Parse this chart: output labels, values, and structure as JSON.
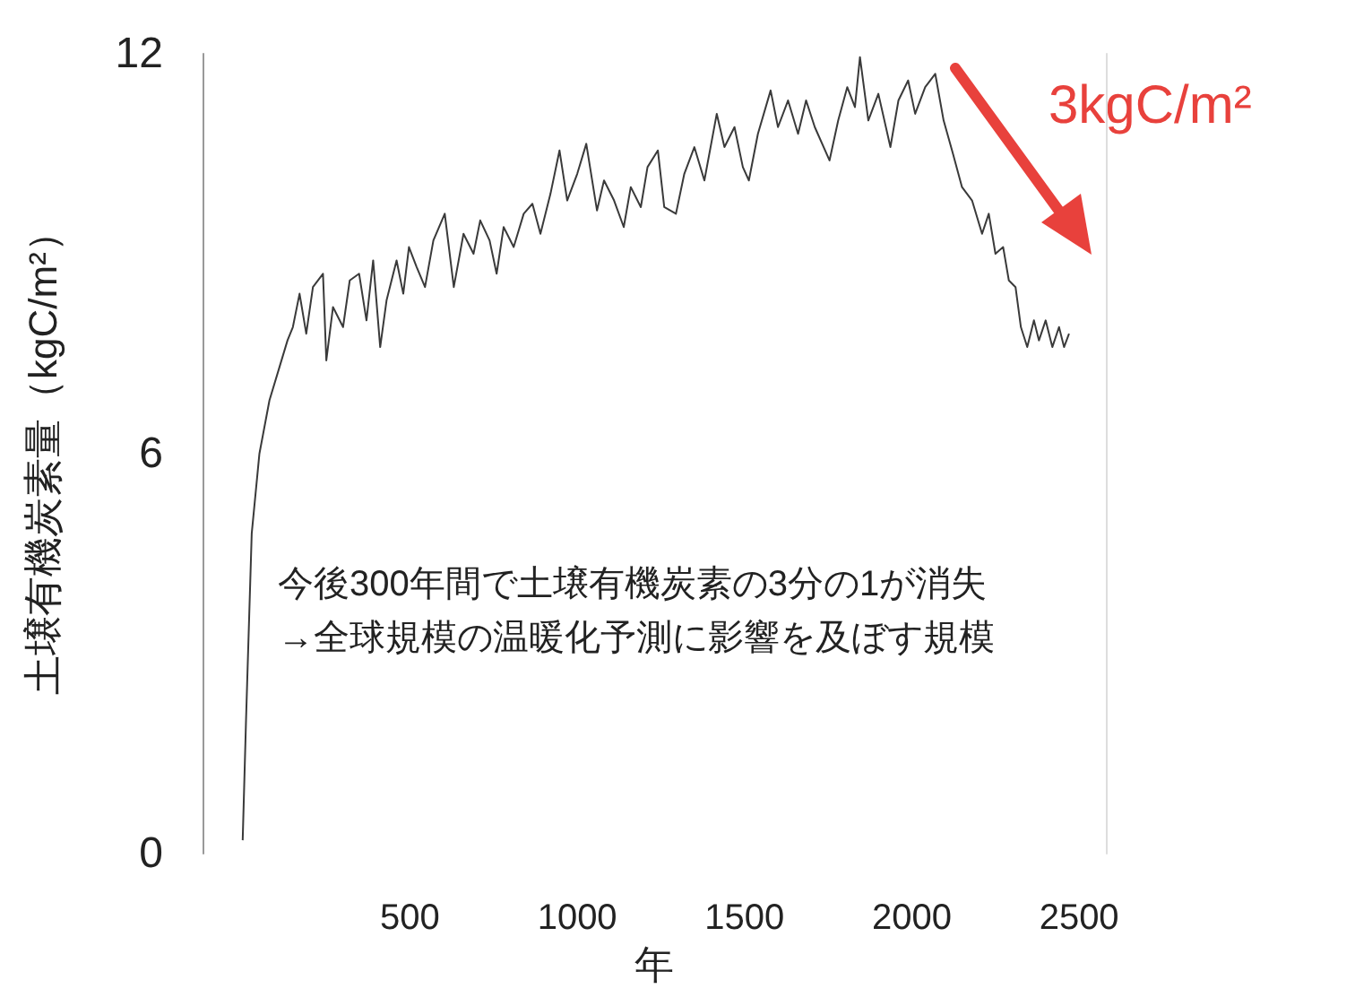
{
  "chart_data": {
    "type": "line",
    "xlabel": "年",
    "ylabel": "土壌有機炭素量（kgC/m²）",
    "annotations": [
      "今後300年間で土壌有機炭素の3分の1が消失",
      "→全球規模の温暖化予測に影響を及ぼす規模",
      "3kgC/m²"
    ],
    "xlim": [
      -120,
      2580
    ],
    "xticks": [
      500,
      1000,
      1500,
      2000,
      2500
    ],
    "ylim": [
      0,
      12
    ],
    "yticks": [
      0,
      6,
      12
    ],
    "marker": "none",
    "series": [
      {
        "color": "#3a3a3a",
        "x": [
          0,
          10,
          27,
          50,
          80,
          110,
          134,
          150,
          170,
          190,
          210,
          240,
          250,
          270,
          300,
          320,
          348,
          370,
          390,
          411,
          430,
          460,
          480,
          497,
          520,
          545,
          570,
          604,
          631,
          660,
          690,
          710,
          738,
          759,
          780,
          810,
          840,
          866,
          890,
          920,
          947,
          970,
          1000,
          1027,
          1059,
          1080,
          1110,
          1139,
          1160,
          1190,
          1210,
          1241,
          1260,
          1295,
          1320,
          1350,
          1380,
          1417,
          1440,
          1470,
          1495,
          1513,
          1540,
          1578,
          1600,
          1630,
          1660,
          1684,
          1710,
          1754,
          1780,
          1807,
          1830,
          1845,
          1870,
          1900,
          1936,
          1960,
          1989,
          2010,
          2040,
          2070,
          2095,
          2123,
          2150,
          2180,
          2210,
          2230,
          2250,
          2273,
          2290,
          2310,
          2326,
          2345,
          2365,
          2380,
          2400,
          2420,
          2440,
          2455,
          2470
        ],
        "values": [
          0.2,
          2.0,
          4.8,
          6.0,
          6.8,
          7.3,
          7.7,
          7.9,
          8.4,
          7.8,
          8.5,
          8.7,
          7.4,
          8.2,
          7.9,
          8.6,
          8.7,
          8.0,
          8.9,
          7.6,
          8.3,
          8.9,
          8.4,
          9.1,
          8.8,
          8.5,
          9.2,
          9.6,
          8.5,
          9.3,
          9.0,
          9.5,
          9.2,
          8.7,
          9.4,
          9.1,
          9.6,
          9.75,
          9.3,
          9.9,
          10.55,
          9.8,
          10.2,
          10.65,
          9.65,
          10.1,
          9.8,
          9.4,
          10.0,
          9.7,
          10.3,
          10.55,
          9.7,
          9.6,
          10.2,
          10.6,
          10.1,
          11.1,
          10.6,
          10.9,
          10.3,
          10.1,
          10.8,
          11.45,
          10.9,
          11.3,
          10.8,
          11.3,
          10.9,
          10.4,
          11.0,
          11.5,
          11.2,
          11.95,
          11.0,
          11.4,
          10.6,
          11.3,
          11.6,
          11.1,
          11.5,
          11.7,
          11.0,
          10.5,
          10.0,
          9.8,
          9.3,
          9.6,
          9.0,
          9.1,
          8.6,
          8.5,
          7.9,
          7.6,
          8.0,
          7.7,
          8.0,
          7.6,
          7.9,
          7.6,
          7.8
        ]
      }
    ]
  }
}
